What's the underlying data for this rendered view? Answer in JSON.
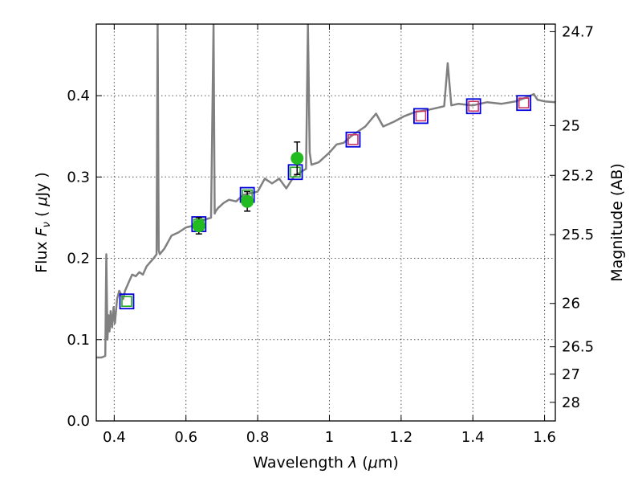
{
  "chart_data": {
    "type": "line",
    "xlabel": "Wavelength  λ (μm)",
    "ylabel": "Flux  F_ν  ( μJy )",
    "ylabel_parts": {
      "prefix": "Flux  ",
      "symbol": "F",
      "subscript": "ν",
      "open": "  ( ",
      "mu": "μ",
      "unit": "Jy )"
    },
    "xlabel_parts": {
      "prefix": "Wavelength  ",
      "symbol": "λ",
      "open": " (",
      "mu": "μ",
      "unit": "m)"
    },
    "y2label": "Magnitude (AB)",
    "xlim": [
      0.35,
      1.63
    ],
    "ylim": [
      0.0,
      0.488
    ],
    "xticks": [
      0.4,
      0.6,
      0.8,
      1.0,
      1.2,
      1.4,
      1.6
    ],
    "xtick_labels": [
      "0.4",
      "0.6",
      "0.8",
      "1",
      "1.2",
      "1.4",
      "1.6"
    ],
    "yticks": [
      0.0,
      0.1,
      0.2,
      0.3,
      0.4
    ],
    "ytick_labels": [
      "0.0",
      "0.1",
      "0.2",
      "0.3",
      "0.4"
    ],
    "y2ticks": [
      {
        "label": "24.7",
        "flux": 0.4787
      },
      {
        "label": "25",
        "flux": 0.3631
      },
      {
        "label": "25.2",
        "flux": 0.302
      },
      {
        "label": "25.5",
        "flux": 0.2291
      },
      {
        "label": "26",
        "flux": 0.1445
      },
      {
        "label": "26.5",
        "flux": 0.0912
      },
      {
        "label": "27",
        "flux": 0.0575
      },
      {
        "label": "28",
        "flux": 0.0229
      }
    ],
    "grid": true,
    "colors": {
      "spectrum": "#808080",
      "model_box": "#0000dd",
      "inner_green": "#22aa22",
      "inner_red": "#cc3366",
      "observed": "#22bb22",
      "errorbar": "#000000"
    },
    "series": [
      {
        "kind": "spectrum",
        "x": [
          0.35,
          0.365,
          0.375,
          0.378,
          0.381,
          0.384,
          0.387,
          0.39,
          0.394,
          0.398,
          0.402,
          0.408,
          0.414,
          0.42,
          0.425,
          0.43,
          0.44,
          0.45,
          0.46,
          0.47,
          0.48,
          0.49,
          0.5,
          0.51,
          0.518,
          0.521,
          0.524,
          0.527,
          0.54,
          0.56,
          0.58,
          0.6,
          0.62,
          0.64,
          0.655,
          0.67,
          0.677,
          0.68,
          0.683,
          0.69,
          0.705,
          0.72,
          0.74,
          0.76,
          0.78,
          0.8,
          0.82,
          0.84,
          0.86,
          0.88,
          0.9,
          0.92,
          0.935,
          0.94,
          0.945,
          0.95,
          0.97,
          1.0,
          1.02,
          1.04,
          1.06,
          1.08,
          1.1,
          1.13,
          1.15,
          1.18,
          1.21,
          1.24,
          1.27,
          1.3,
          1.32,
          1.33,
          1.34,
          1.36,
          1.4,
          1.44,
          1.48,
          1.52,
          1.55,
          1.57,
          1.58,
          1.6,
          1.63
        ],
        "y": [
          0.078,
          0.078,
          0.08,
          0.205,
          0.1,
          0.13,
          0.11,
          0.135,
          0.115,
          0.14,
          0.12,
          0.15,
          0.16,
          0.155,
          0.15,
          0.16,
          0.17,
          0.18,
          0.178,
          0.183,
          0.18,
          0.19,
          0.195,
          0.2,
          0.205,
          0.488,
          0.21,
          0.205,
          0.212,
          0.228,
          0.232,
          0.238,
          0.24,
          0.245,
          0.248,
          0.25,
          0.488,
          0.255,
          0.258,
          0.262,
          0.268,
          0.272,
          0.27,
          0.278,
          0.28,
          0.282,
          0.298,
          0.292,
          0.298,
          0.286,
          0.3,
          0.306,
          0.31,
          0.488,
          0.33,
          0.315,
          0.318,
          0.33,
          0.34,
          0.342,
          0.35,
          0.356,
          0.362,
          0.378,
          0.362,
          0.368,
          0.375,
          0.38,
          0.382,
          0.385,
          0.387,
          0.44,
          0.388,
          0.39,
          0.388,
          0.392,
          0.39,
          0.393,
          0.398,
          0.402,
          0.395,
          0.393,
          0.392
        ]
      },
      {
        "kind": "model_photometry",
        "x": [
          0.435,
          0.636,
          0.771,
          0.905,
          1.066,
          1.255,
          1.402,
          1.542
        ],
        "y": [
          0.147,
          0.242,
          0.278,
          0.306,
          0.346,
          0.375,
          0.387,
          0.391
        ],
        "inner": [
          "green",
          "green",
          "green",
          "green",
          "red",
          "red",
          "red",
          "red"
        ]
      },
      {
        "kind": "observed_photometry",
        "x": [
          0.636,
          0.771,
          0.91
        ],
        "y": [
          0.24,
          0.27,
          0.323
        ],
        "yerr": [
          0.01,
          0.012,
          0.02
        ]
      }
    ]
  }
}
